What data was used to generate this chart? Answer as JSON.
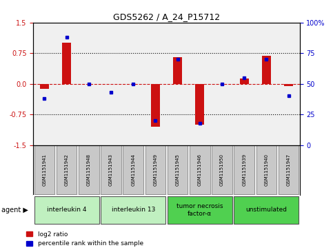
{
  "title": "GDS5262 / A_24_P15712",
  "samples": [
    "GSM1151941",
    "GSM1151942",
    "GSM1151948",
    "GSM1151943",
    "GSM1151944",
    "GSM1151949",
    "GSM1151945",
    "GSM1151946",
    "GSM1151950",
    "GSM1151939",
    "GSM1151940",
    "GSM1151947"
  ],
  "log2_ratio": [
    -0.12,
    1.0,
    0.0,
    0.0,
    0.0,
    -1.05,
    0.65,
    -1.0,
    0.0,
    0.13,
    0.68,
    -0.05
  ],
  "percentile": [
    38,
    88,
    50,
    43,
    50,
    20,
    70,
    18,
    50,
    55,
    70,
    40
  ],
  "agents": [
    {
      "label": "interleukin 4",
      "start": 0,
      "end": 2,
      "color": "#c0f0c0"
    },
    {
      "label": "interleukin 13",
      "start": 3,
      "end": 5,
      "color": "#c0f0c0"
    },
    {
      "label": "tumor necrosis\nfactor-α",
      "start": 6,
      "end": 8,
      "color": "#50d050"
    },
    {
      "label": "unstimulated",
      "start": 9,
      "end": 11,
      "color": "#50d050"
    }
  ],
  "ylim": [
    -1.5,
    1.5
  ],
  "yticks_left": [
    -1.5,
    -0.75,
    0.0,
    0.75,
    1.5
  ],
  "yticks_right": [
    0,
    25,
    50,
    75,
    100
  ],
  "bar_color": "#cc1111",
  "dot_color": "#0000cc",
  "background_color": "#ffffff",
  "plot_bg": "#f0f0f0",
  "grid_color": "#000000",
  "hline_color": "#cc1111",
  "sample_box_color": "#c8c8c8",
  "legend_items": [
    "log2 ratio",
    "percentile rank within the sample"
  ]
}
